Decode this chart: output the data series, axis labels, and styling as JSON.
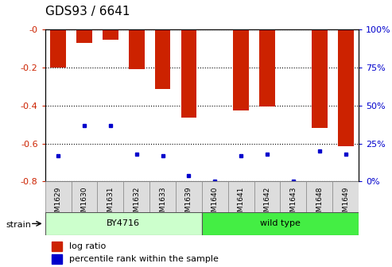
{
  "title": "GDS93 / 6641",
  "samples": [
    "GSM1629",
    "GSM1630",
    "GSM1631",
    "GSM1632",
    "GSM1633",
    "GSM1639",
    "GSM1640",
    "GSM1641",
    "GSM1642",
    "GSM1643",
    "GSM1648",
    "GSM1649"
  ],
  "log_ratio": [
    -0.2,
    -0.07,
    -0.055,
    -0.21,
    -0.315,
    -0.465,
    0.0,
    -0.425,
    -0.405,
    0.0,
    -0.52,
    -0.615
  ],
  "percentile_rank_pct": [
    17,
    37,
    37,
    18,
    17,
    4,
    0,
    17,
    18,
    0,
    20,
    18
  ],
  "ylim": [
    -0.8,
    0.0
  ],
  "yticks_left": [
    0.0,
    -0.2,
    -0.4,
    -0.6,
    -0.8
  ],
  "yticks_right_pct": [
    100,
    75,
    50,
    25,
    0
  ],
  "strain_groups": [
    {
      "label": "BY4716",
      "start": 0,
      "end": 5,
      "color": "#ccffcc"
    },
    {
      "label": "wild type",
      "start": 6,
      "end": 11,
      "color": "#44ee44"
    }
  ],
  "bar_color": "#cc2200",
  "dot_color": "#0000cc",
  "tick_label_color_left": "#cc2200",
  "tick_label_color_right": "#0000cc",
  "title_fontsize": 11,
  "legend_items": [
    {
      "label": "log ratio",
      "color": "#cc2200"
    },
    {
      "label": "percentile rank within the sample",
      "color": "#0000cc"
    }
  ]
}
